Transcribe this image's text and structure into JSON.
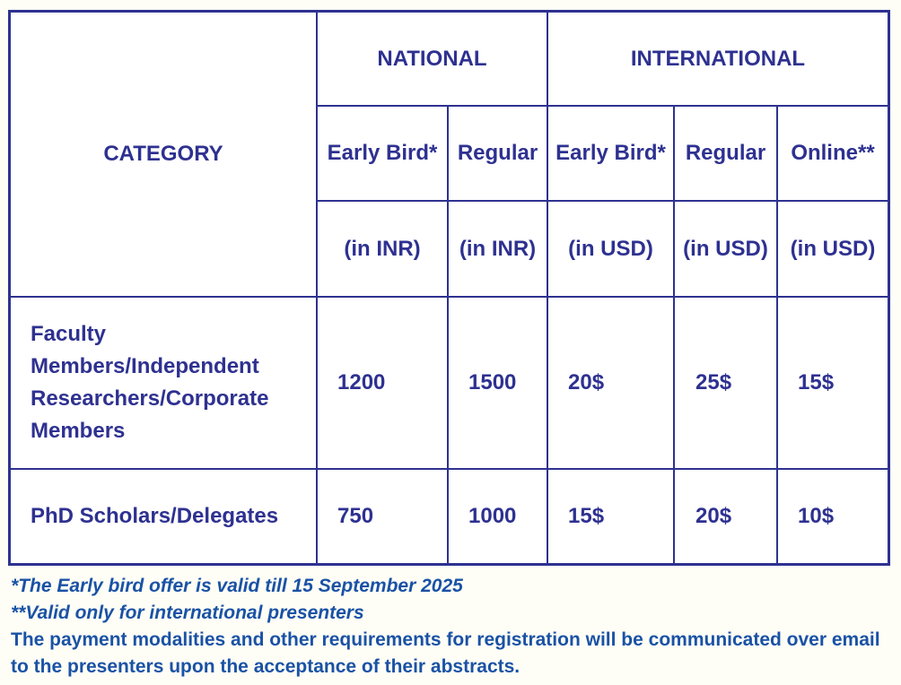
{
  "table": {
    "header_category": "CATEGORY",
    "header_national": "NATIONAL",
    "header_international": "INTERNATIONAL",
    "subheaders": [
      "Early Bird*",
      "Regular",
      "Early Bird*",
      "Regular",
      "Online**"
    ],
    "units": [
      "(in INR)",
      "(in INR)",
      "(in USD)",
      "(in USD)",
      "(in USD)"
    ],
    "rows": [
      {
        "category_lines": [
          "Faculty",
          "Members/Independent",
          "Researchers/Corporate",
          "Members"
        ],
        "values": [
          "1200",
          "1500",
          "20$",
          "25$",
          "15$"
        ]
      },
      {
        "category": "PhD Scholars/Delegates",
        "values": [
          "750",
          "1000",
          "15$",
          "20$",
          "10$"
        ]
      }
    ]
  },
  "notes": {
    "early_bird": "*The Early bird offer is valid till  15 September 2025",
    "online": "**Valid only for international presenters",
    "payment": "The payment modalities and other requirements for registration will be communicated over email to the presenters upon the acceptance of their abstracts."
  },
  "colors": {
    "table_text": "#2e3190",
    "notes_text": "#1a52a5",
    "background": "#fefef6"
  }
}
